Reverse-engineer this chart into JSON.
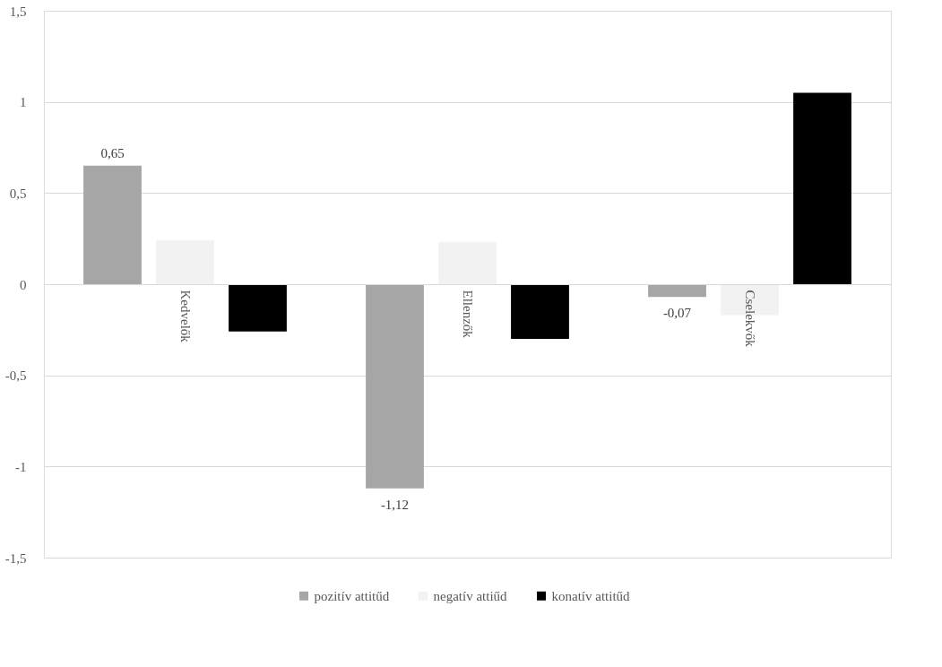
{
  "chart_data": {
    "type": "bar",
    "categories": [
      "Kedvelők",
      "Ellenzők",
      "Cselekvők"
    ],
    "series": [
      {
        "name": "pozitív attitűd",
        "color": "#a6a6a6",
        "values": [
          0.65,
          -1.12,
          -0.07
        ],
        "value_labels": [
          "0,65",
          "-1,12",
          "-0,07"
        ]
      },
      {
        "name": "negatív attiűd",
        "color": "#f2f2f2",
        "values": [
          0.24,
          0.23,
          -0.17
        ]
      },
      {
        "name": "konatív attitűd",
        "color": "#000000",
        "values": [
          -0.26,
          -0.3,
          1.05
        ]
      }
    ],
    "ylim": [
      -1.5,
      1.5
    ],
    "yticks": [
      {
        "value": 1.5,
        "label": "1,5"
      },
      1,
      {
        "value": 0.5,
        "label": "0,5"
      },
      0,
      {
        "value": -0.5,
        "label": "-0,5"
      },
      -1,
      {
        "value": -1.5,
        "label": "-1,5"
      }
    ],
    "grid": "y",
    "legend": "bottom"
  }
}
